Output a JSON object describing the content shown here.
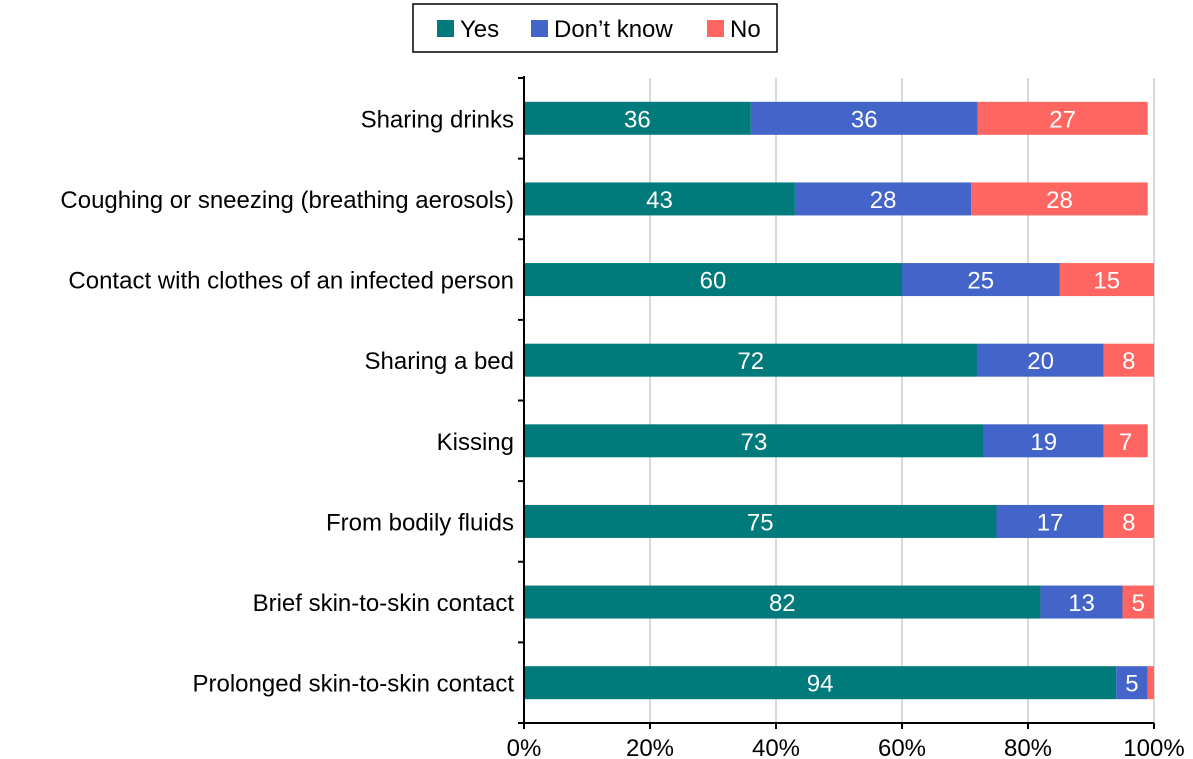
{
  "chart_data": {
    "type": "bar",
    "orientation": "horizontal",
    "stacked": true,
    "title": "",
    "xlabel": "",
    "ylabel": "",
    "xlim": [
      0,
      100
    ],
    "x_ticks": [
      "0%",
      "20%",
      "40%",
      "60%",
      "80%",
      "100%"
    ],
    "grid": "vertical",
    "legend_position": "top",
    "categories": [
      "Sharing drinks",
      "Coughing or sneezing (breathing aerosols)",
      "Contact with clothes of an infected person",
      "Sharing a bed",
      "Kissing",
      "From bodily fluids",
      "Brief skin-to-skin contact",
      "Prolonged skin-to-skin contact"
    ],
    "series": [
      {
        "name": "Yes",
        "color": "#007A7A",
        "values": [
          36,
          43,
          60,
          72,
          73,
          75,
          82,
          94
        ]
      },
      {
        "name": "Don’t know",
        "color": "#4364C8",
        "values": [
          36,
          28,
          25,
          20,
          19,
          17,
          13,
          5
        ]
      },
      {
        "name": "No",
        "color": "#FF6661",
        "values": [
          27,
          28,
          15,
          8,
          7,
          8,
          5,
          1
        ]
      }
    ],
    "data_labels": {
      "Yes": [
        "36",
        "43",
        "60",
        "72",
        "73",
        "75",
        "82",
        "94"
      ],
      "Don’t know": [
        "36",
        "28",
        "25",
        "20",
        "19",
        "17",
        "13",
        "5"
      ],
      "No": [
        "27",
        "28",
        "15",
        "8",
        "7",
        "8",
        "5",
        ""
      ]
    }
  }
}
